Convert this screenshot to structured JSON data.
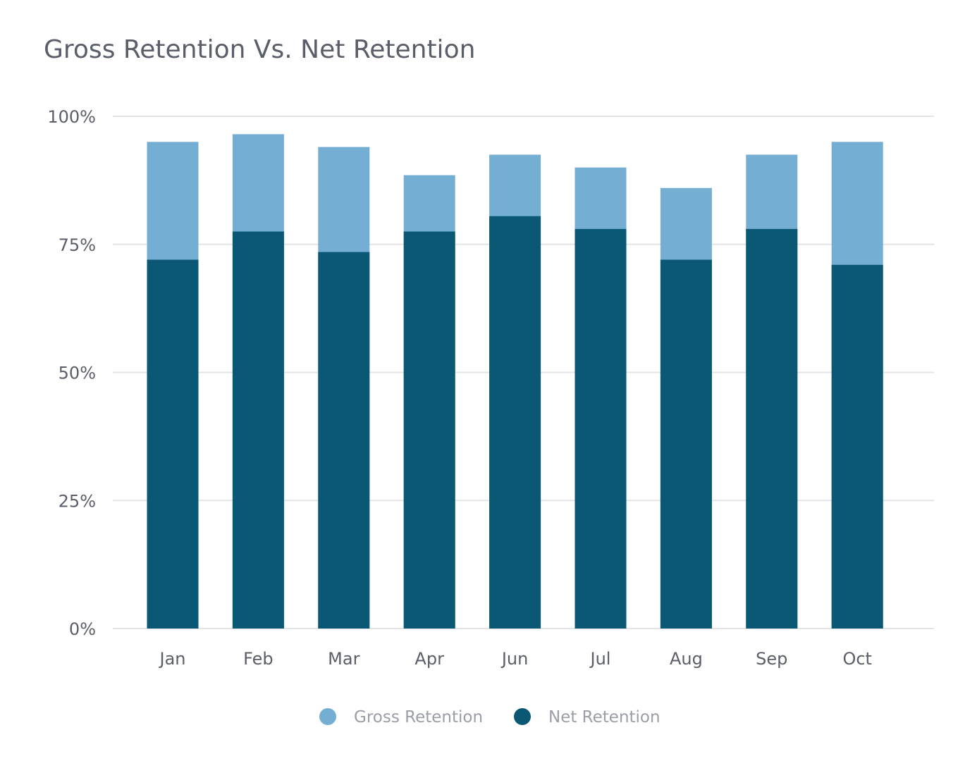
{
  "chart_data": {
    "type": "bar",
    "title": "Gross Retention Vs. Net Retention",
    "xlabel": "",
    "ylabel": "",
    "categories": [
      "Jan",
      "Feb",
      "Mar",
      "Apr",
      "Jun",
      "Jul",
      "Aug",
      "Sep",
      "Oct"
    ],
    "series": [
      {
        "name": "Gross Retention",
        "color": "#74afd3",
        "values": [
          95,
          96.5,
          94,
          88.5,
          92.5,
          90,
          86,
          92.5,
          95
        ]
      },
      {
        "name": "Net Retention",
        "color": "#0a5873",
        "values": [
          72,
          77.5,
          73.5,
          77.5,
          80.5,
          78,
          72,
          78,
          71
        ]
      }
    ],
    "overlap": true,
    "ylim": [
      0,
      100
    ],
    "yticks": [
      "0%",
      "25%",
      "50%",
      "75%",
      "100%"
    ],
    "ytick_values": [
      0,
      25,
      50,
      75,
      100
    ],
    "grid": true,
    "legend_position": "bottom"
  }
}
